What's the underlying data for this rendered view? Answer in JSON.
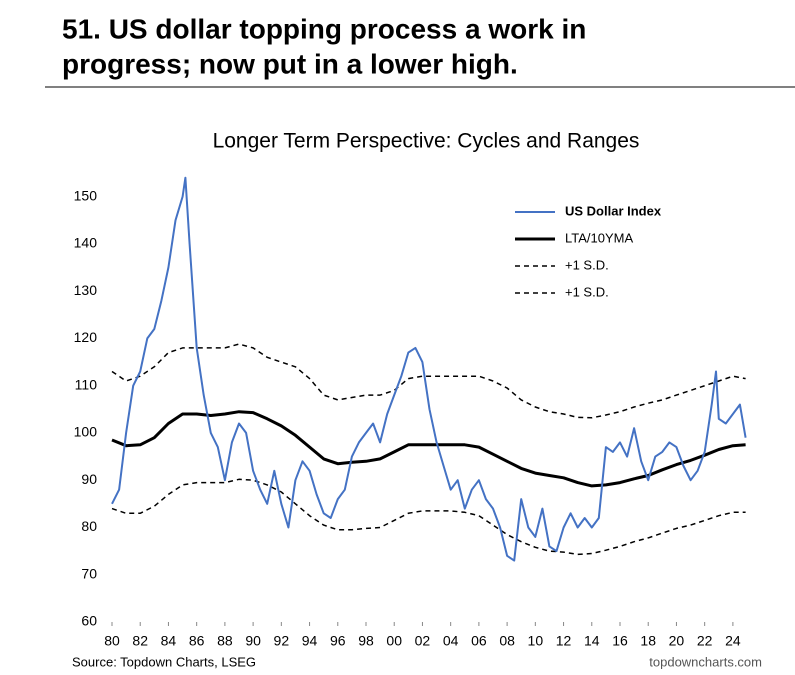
{
  "header": {
    "title_lines": [
      "51. US dollar topping process a work in",
      "progress; now put in a lower high."
    ]
  },
  "chart_data": {
    "type": "line",
    "title": "Longer Term Perspective: Cycles and Ranges",
    "source": "Source: Topdown Charts, LSEG",
    "credit": "topdowncharts.com",
    "xlim": [
      1980,
      2025
    ],
    "ylim": [
      60,
      155
    ],
    "yticks": [
      60,
      70,
      80,
      90,
      100,
      110,
      120,
      130,
      140,
      150
    ],
    "xticks": [
      {
        "value": 1980,
        "label": "80"
      },
      {
        "value": 1982,
        "label": "82"
      },
      {
        "value": 1984,
        "label": "84"
      },
      {
        "value": 1986,
        "label": "86"
      },
      {
        "value": 1988,
        "label": "88"
      },
      {
        "value": 1990,
        "label": "90"
      },
      {
        "value": 1992,
        "label": "92"
      },
      {
        "value": 1994,
        "label": "94"
      },
      {
        "value": 1996,
        "label": "96"
      },
      {
        "value": 1998,
        "label": "98"
      },
      {
        "value": 2000,
        "label": "00"
      },
      {
        "value": 2002,
        "label": "02"
      },
      {
        "value": 2004,
        "label": "04"
      },
      {
        "value": 2006,
        "label": "06"
      },
      {
        "value": 2008,
        "label": "08"
      },
      {
        "value": 2010,
        "label": "10"
      },
      {
        "value": 2012,
        "label": "12"
      },
      {
        "value": 2014,
        "label": "14"
      },
      {
        "value": 2016,
        "label": "16"
      },
      {
        "value": 2018,
        "label": "18"
      },
      {
        "value": 2020,
        "label": "20"
      },
      {
        "value": 2022,
        "label": "22"
      },
      {
        "value": 2024,
        "label": "24"
      }
    ],
    "grid": false,
    "series": [
      {
        "name": "US Dollar Index",
        "color": "#4472c4",
        "width": 2,
        "dashed": false,
        "x": [
          1980,
          1980.5,
          1981,
          1981.5,
          1982,
          1982.5,
          1983,
          1983.5,
          1984,
          1984.5,
          1985,
          1985.2,
          1985.5,
          1986,
          1986.5,
          1987,
          1987.5,
          1988,
          1988.5,
          1989,
          1989.5,
          1990,
          1990.5,
          1991,
          1991.5,
          1992,
          1992.5,
          1993,
          1993.5,
          1994,
          1994.5,
          1995,
          1995.5,
          1996,
          1996.5,
          1997,
          1997.5,
          1998,
          1998.5,
          1999,
          1999.5,
          2000,
          2000.5,
          2001,
          2001.5,
          2002,
          2002.5,
          2003,
          2003.5,
          2004,
          2004.5,
          2005,
          2005.5,
          2006,
          2006.5,
          2007,
          2007.5,
          2008,
          2008.5,
          2009,
          2009.5,
          2010,
          2010.5,
          2011,
          2011.5,
          2012,
          2012.5,
          2013,
          2013.5,
          2014,
          2014.5,
          2015,
          2015.5,
          2016,
          2016.5,
          2017,
          2017.5,
          2018,
          2018.5,
          2019,
          2019.5,
          2020,
          2020.5,
          2021,
          2021.5,
          2022,
          2022.5,
          2022.8,
          2023,
          2023.5,
          2024,
          2024.5,
          2024.9
        ],
        "values": [
          85,
          88,
          100,
          110,
          113,
          120,
          122,
          128,
          135,
          145,
          150,
          154,
          140,
          118,
          108,
          100,
          97,
          90,
          98,
          102,
          100,
          92,
          88,
          85,
          92,
          85,
          80,
          90,
          94,
          92,
          87,
          83,
          82,
          86,
          88,
          95,
          98,
          100,
          102,
          98,
          104,
          108,
          112,
          117,
          118,
          115,
          105,
          98,
          93,
          88,
          90,
          84,
          88,
          90,
          86,
          84,
          80,
          74,
          73,
          86,
          80,
          78,
          84,
          76,
          75,
          80,
          83,
          80,
          82,
          80,
          82,
          97,
          96,
          98,
          95,
          101,
          94,
          90,
          95,
          96,
          98,
          97,
          93,
          90,
          92,
          96,
          106,
          113,
          103,
          102,
          104,
          106,
          99
        ]
      },
      {
        "name": "LTA/10YMA",
        "color": "#000000",
        "width": 3,
        "dashed": false,
        "x": [
          1980,
          1981,
          1982,
          1983,
          1984,
          1985,
          1986,
          1987,
          1988,
          1989,
          1990,
          1991,
          1992,
          1993,
          1994,
          1995,
          1996,
          1997,
          1998,
          1999,
          2000,
          2001,
          2002,
          2003,
          2004,
          2005,
          2006,
          2007,
          2008,
          2009,
          2010,
          2011,
          2012,
          2013,
          2014,
          2015,
          2016,
          2017,
          2018,
          2019,
          2020,
          2021,
          2022,
          2023,
          2024,
          2024.9
        ],
        "values": [
          98.5,
          97.3,
          97.5,
          99,
          102,
          104,
          104,
          103.7,
          104,
          104.5,
          104.3,
          103,
          101.5,
          99.5,
          97,
          94.5,
          93.5,
          93.8,
          94,
          94.5,
          96,
          97.5,
          97.5,
          97.5,
          97.5,
          97.5,
          97,
          95.5,
          94,
          92.5,
          91.5,
          91,
          90.5,
          89.5,
          88.8,
          89,
          89.5,
          90.3,
          91,
          92.2,
          93.3,
          94.2,
          95.3,
          96.5,
          97.3,
          97.5
        ]
      },
      {
        "name": "+1 S.D.",
        "color": "#000000",
        "width": 1.5,
        "dashed": true,
        "x": [
          1980,
          1981,
          1982,
          1983,
          1984,
          1985,
          1986,
          1987,
          1988,
          1989,
          1990,
          1991,
          1992,
          1993,
          1994,
          1995,
          1996,
          1997,
          1998,
          1999,
          2000,
          2001,
          2002,
          2003,
          2004,
          2005,
          2006,
          2007,
          2008,
          2009,
          2010,
          2011,
          2012,
          2013,
          2014,
          2015,
          2016,
          2017,
          2018,
          2019,
          2020,
          2021,
          2022,
          2023,
          2024,
          2024.9
        ],
        "values": [
          113,
          111,
          112,
          114,
          117,
          118,
          118,
          118,
          118,
          118.8,
          118,
          116,
          115,
          114,
          111.5,
          108,
          107,
          107.5,
          108,
          108,
          109,
          111.5,
          112,
          112,
          112,
          112,
          112,
          111,
          109.5,
          107,
          105.5,
          104.5,
          104,
          103.3,
          103.2,
          103.8,
          104.5,
          105.5,
          106.3,
          107,
          108,
          109,
          110,
          111,
          112,
          111.5
        ]
      },
      {
        "name": "+1 S.D.",
        "color": "#000000",
        "width": 1.5,
        "dashed": true,
        "x": [
          1980,
          1981,
          1982,
          1983,
          1984,
          1985,
          1986,
          1987,
          1988,
          1989,
          1990,
          1991,
          1992,
          1993,
          1994,
          1995,
          1996,
          1997,
          1998,
          1999,
          2000,
          2001,
          2002,
          2003,
          2004,
          2005,
          2006,
          2007,
          2008,
          2009,
          2010,
          2011,
          2012,
          2013,
          2014,
          2015,
          2016,
          2017,
          2018,
          2019,
          2020,
          2021,
          2022,
          2023,
          2024,
          2024.9
        ],
        "values": [
          84,
          83,
          83,
          84.5,
          87,
          89,
          89.5,
          89.5,
          89.5,
          90.2,
          90,
          89,
          87.5,
          85,
          82.5,
          80.5,
          79.5,
          79.5,
          79.8,
          80,
          81.5,
          83,
          83.5,
          83.5,
          83.5,
          83.2,
          82.5,
          80.5,
          78.5,
          77,
          75.8,
          75,
          74.8,
          74.3,
          74.5,
          75.2,
          76,
          77,
          77.8,
          78.8,
          79.8,
          80.5,
          81.5,
          82.5,
          83.2,
          83.2
        ]
      }
    ]
  }
}
